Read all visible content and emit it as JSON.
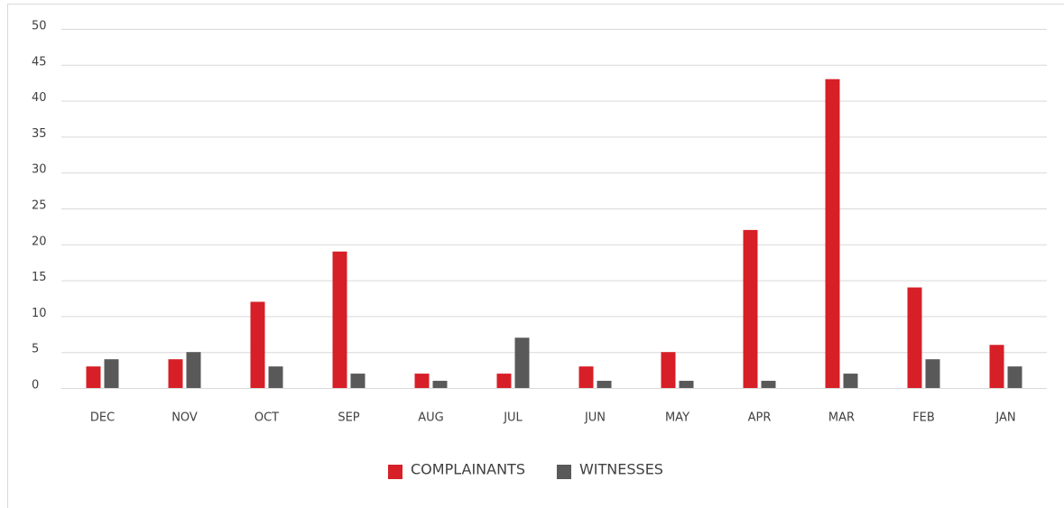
{
  "chart_data": {
    "type": "bar",
    "categories": [
      "DEC",
      "NOV",
      "OCT",
      "SEP",
      "AUG",
      "JUL",
      "JUN",
      "MAY",
      "APR",
      "MAR",
      "FEB",
      "JAN"
    ],
    "series": [
      {
        "name": "COMPLAINANTS",
        "color": "#d71f27",
        "values": [
          3,
          4,
          12,
          19,
          2,
          2,
          3,
          5,
          22,
          43,
          14,
          6
        ]
      },
      {
        "name": "WITNESSES",
        "color": "#595959",
        "values": [
          4,
          5,
          3,
          2,
          1,
          7,
          1,
          1,
          1,
          2,
          4,
          3
        ]
      }
    ],
    "ylim": [
      0,
      50
    ],
    "yticks": [
      0,
      5,
      10,
      15,
      20,
      25,
      30,
      35,
      40,
      45,
      50
    ],
    "grid": true,
    "legend": "bottom"
  }
}
